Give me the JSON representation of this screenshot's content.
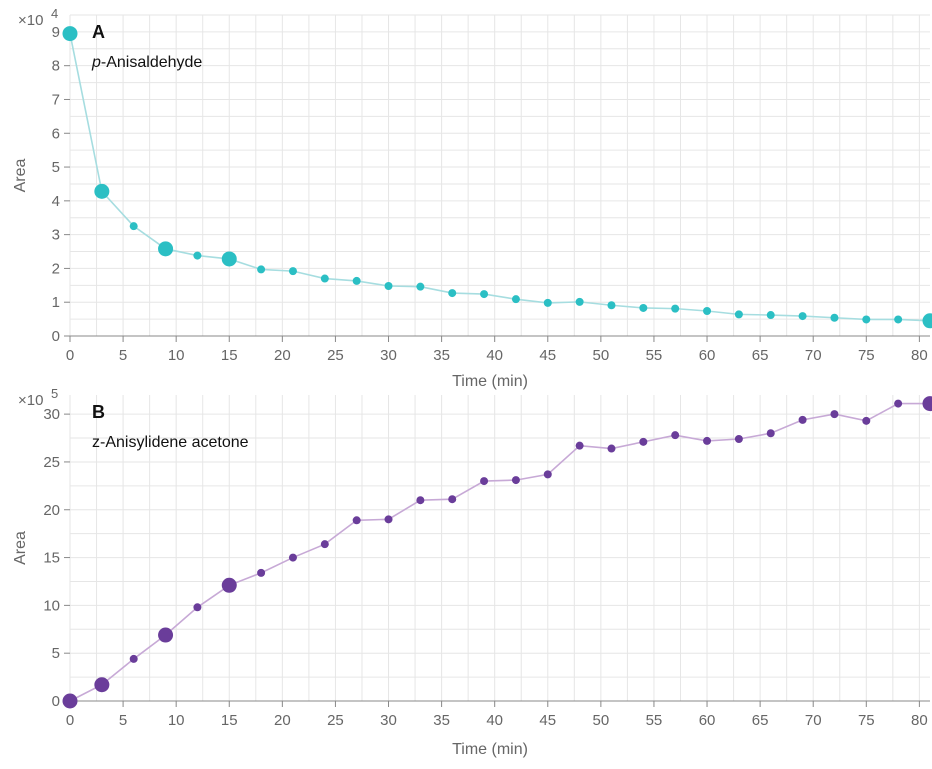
{
  "chart_data": [
    {
      "type": "line",
      "panel_label": "A",
      "series_name": "p-Anisaldehyde",
      "series_prefix": "p",
      "series_rest": "-Anisaldehyde",
      "xlabel": "Time (min)",
      "ylabel": "Area",
      "y_multiplier": "×10",
      "y_exponent": "4",
      "xlim": [
        0,
        81
      ],
      "ylim": [
        0,
        9.5
      ],
      "xticks": [
        0,
        5,
        10,
        15,
        20,
        25,
        30,
        35,
        40,
        45,
        50,
        55,
        60,
        65,
        70,
        75,
        80
      ],
      "yticks": [
        0,
        1,
        2,
        3,
        4,
        5,
        6,
        7,
        8,
        9
      ],
      "grid": true,
      "color": "#2bbfc4",
      "line_color": "#a6dde0",
      "x": [
        0,
        3,
        6,
        9,
        12,
        15,
        18,
        21,
        24,
        27,
        30,
        33,
        36,
        39,
        42,
        45,
        48,
        51,
        54,
        57,
        60,
        63,
        66,
        69,
        72,
        75,
        78,
        81
      ],
      "y": [
        8.95,
        4.28,
        3.25,
        2.58,
        2.38,
        2.28,
        1.97,
        1.92,
        1.7,
        1.63,
        1.48,
        1.46,
        1.27,
        1.24,
        1.09,
        0.98,
        1.01,
        0.91,
        0.83,
        0.81,
        0.74,
        0.64,
        0.62,
        0.59,
        0.54,
        0.49,
        0.49,
        0.45
      ],
      "large_markers": [
        0,
        3,
        9,
        15,
        81
      ]
    },
    {
      "type": "line",
      "panel_label": "B",
      "series_name": "z-Anisylidene acetone",
      "series_prefix": "",
      "series_rest": "z-Anisylidene acetone",
      "xlabel": "Time (min)",
      "ylabel": "Area",
      "y_multiplier": "×10",
      "y_exponent": "5",
      "xlim": [
        0,
        81
      ],
      "ylim": [
        0,
        32
      ],
      "xticks": [
        0,
        5,
        10,
        15,
        20,
        25,
        30,
        35,
        40,
        45,
        50,
        55,
        60,
        65,
        70,
        75,
        80
      ],
      "yticks": [
        0,
        5,
        10,
        15,
        20,
        25,
        30
      ],
      "grid": true,
      "color": "#6a3d9a",
      "line_color": "#c7a9d6",
      "x": [
        0,
        3,
        6,
        9,
        12,
        15,
        18,
        21,
        24,
        27,
        30,
        33,
        36,
        39,
        42,
        45,
        48,
        51,
        54,
        57,
        60,
        63,
        66,
        69,
        72,
        75,
        78,
        81
      ],
      "y": [
        0,
        1.7,
        4.4,
        6.9,
        9.8,
        12.1,
        13.4,
        15.0,
        16.4,
        18.9,
        19.0,
        21.0,
        21.1,
        23.0,
        23.1,
        23.7,
        26.7,
        26.4,
        27.1,
        27.8,
        27.2,
        27.4,
        28.0,
        29.4,
        30.0,
        29.3,
        31.1,
        31.1
      ],
      "large_markers": [
        0,
        3,
        9,
        15,
        81
      ]
    }
  ]
}
